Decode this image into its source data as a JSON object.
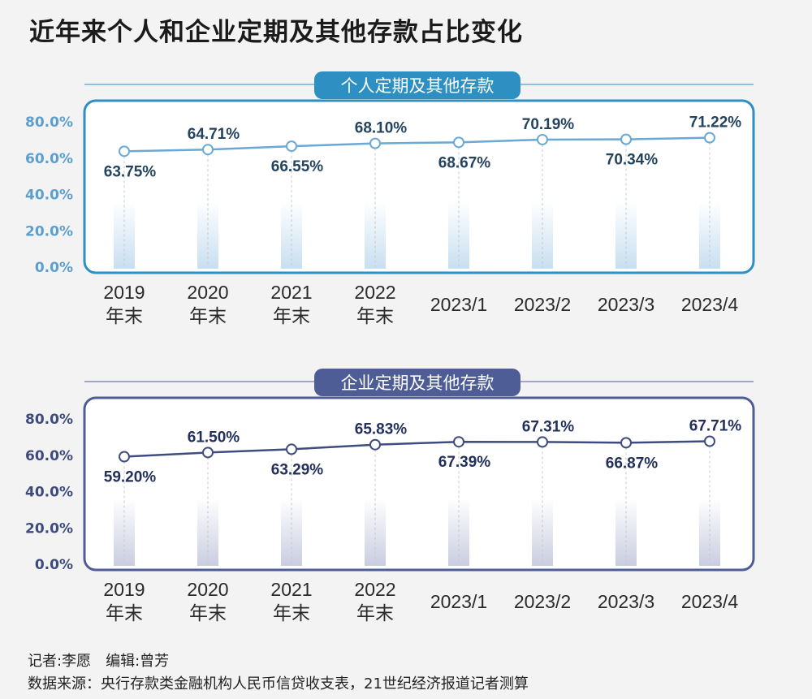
{
  "title": "近年来个人和企业定期及其他存款占比变化",
  "chart_data": [
    {
      "type": "line",
      "title": "个人定期及其他存款",
      "categories": [
        [
          "2019",
          "年末"
        ],
        [
          "2020",
          "年末"
        ],
        [
          "2021",
          "年末"
        ],
        [
          "2022",
          "年末"
        ],
        [
          "2023/1"
        ],
        [
          "2023/2"
        ],
        [
          "2023/3"
        ],
        [
          "2023/4"
        ]
      ],
      "values": [
        63.75,
        64.71,
        66.55,
        68.1,
        68.67,
        70.19,
        70.34,
        71.22
      ],
      "value_labels": [
        "63.75%",
        "64.71%",
        "66.55%",
        "68.10%",
        "68.67%",
        "70.19%",
        "70.34%",
        "71.22%"
      ],
      "label_position": [
        "below",
        "above",
        "below",
        "above",
        "below",
        "above",
        "below",
        "above"
      ],
      "y_ticks": [
        "0.0%",
        "20.0%",
        "40.0%",
        "60.0%",
        "80.0%"
      ],
      "ylim": [
        0,
        80
      ],
      "grid": false,
      "colors": {
        "frame": "#2e8fc3",
        "line": "#6aa8d6",
        "marker_fill": "#ffffff",
        "tick": "#5c9fcf",
        "label": "#23435f",
        "bar_top": "#c8dff0"
      }
    },
    {
      "type": "line",
      "title": "企业定期及其他存款",
      "categories": [
        [
          "2019",
          "年末"
        ],
        [
          "2020",
          "年末"
        ],
        [
          "2021",
          "年末"
        ],
        [
          "2022",
          "年末"
        ],
        [
          "2023/1"
        ],
        [
          "2023/2"
        ],
        [
          "2023/3"
        ],
        [
          "2023/4"
        ]
      ],
      "values": [
        59.2,
        61.5,
        63.29,
        65.83,
        67.39,
        67.31,
        66.87,
        67.71
      ],
      "value_labels": [
        "59.20%",
        "61.50%",
        "63.29%",
        "65.83%",
        "67.39%",
        "67.31%",
        "66.87%",
        "67.71%"
      ],
      "label_position": [
        "below",
        "above",
        "below",
        "above",
        "below",
        "above",
        "below",
        "above"
      ],
      "y_ticks": [
        "0.0%",
        "20.0%",
        "40.0%",
        "60.0%",
        "80.0%"
      ],
      "ylim": [
        0,
        80
      ],
      "grid": false,
      "colors": {
        "frame": "#4e5d95",
        "line": "#3f4c7e",
        "marker_fill": "#ffffff",
        "tick": "#3d4a7c",
        "label": "#23305a",
        "bar_top": "#c9cde0"
      }
    }
  ],
  "footer": {
    "credits": "记者:李愿　编辑:曾芳",
    "source": "数据来源：央行存款类金融机构人民币信贷收支表，21世纪经济报道记者测算"
  }
}
